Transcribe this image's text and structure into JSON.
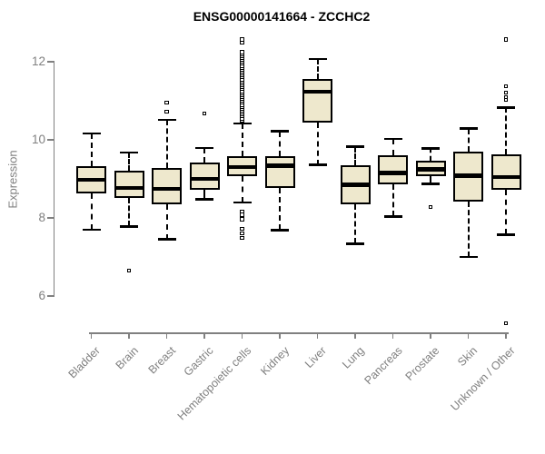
{
  "colors": {
    "box_fill": "#EEE8CD",
    "box_border": "#000000",
    "median": "#000000",
    "axis": "#808080",
    "tick_label": "#808080",
    "title": "#000000",
    "background": "#ffffff"
  },
  "chart_data": {
    "type": "boxplot",
    "title": "ENSG00000141664 - ZCCHC2",
    "xlabel": "",
    "ylabel": "Expression",
    "yticks": [
      6,
      8,
      10,
      12
    ],
    "ylim": [
      5.0,
      12.8
    ],
    "grid": false,
    "categories": [
      "Bladder",
      "Brain",
      "Breast",
      "Gastric",
      "Hematopoietic cells",
      "Kidney",
      "Liver",
      "Lung",
      "Pancreas",
      "Prostate",
      "Skin",
      "Unknown / Other"
    ],
    "series": [
      {
        "category": "Bladder",
        "whisker_low": 7.7,
        "q1": 8.63,
        "median": 8.98,
        "q3": 9.33,
        "whisker_high": 10.16,
        "outliers": []
      },
      {
        "category": "Brain",
        "whisker_low": 7.78,
        "q1": 8.51,
        "median": 8.77,
        "q3": 9.21,
        "whisker_high": 9.67,
        "outliers": [
          6.65
        ]
      },
      {
        "category": "Breast",
        "whisker_low": 7.45,
        "q1": 8.35,
        "median": 8.74,
        "q3": 9.28,
        "whisker_high": 10.51,
        "outliers": [
          10.72,
          10.95
        ]
      },
      {
        "category": "Gastric",
        "whisker_low": 8.48,
        "q1": 8.72,
        "median": 9.0,
        "q3": 9.42,
        "whisker_high": 9.79,
        "outliers": [
          10.67
        ]
      },
      {
        "category": "Hematopoietic cells",
        "whisker_low": 8.39,
        "q1": 9.07,
        "median": 9.3,
        "q3": 9.58,
        "whisker_high": 10.42,
        "outliers": [
          10.5,
          10.55,
          10.6,
          10.65,
          10.7,
          10.75,
          10.8,
          10.85,
          10.9,
          10.95,
          11.0,
          11.05,
          11.1,
          11.15,
          11.2,
          11.25,
          11.3,
          11.35,
          11.4,
          11.45,
          11.5,
          11.55,
          11.6,
          11.65,
          11.7,
          11.75,
          11.8,
          11.85,
          11.9,
          11.95,
          12.0,
          12.05,
          12.1,
          12.15,
          12.2,
          12.25,
          12.5,
          12.57,
          8.16,
          8.08,
          7.97,
          7.72,
          7.6,
          7.49
        ]
      },
      {
        "category": "Kidney",
        "whisker_low": 7.69,
        "q1": 8.77,
        "median": 9.34,
        "q3": 9.58,
        "whisker_high": 10.22,
        "outliers": []
      },
      {
        "category": "Liver",
        "whisker_low": 9.36,
        "q1": 10.44,
        "median": 11.23,
        "q3": 11.55,
        "whisker_high": 12.07,
        "outliers": []
      },
      {
        "category": "Lung",
        "whisker_low": 7.34,
        "q1": 8.35,
        "median": 8.85,
        "q3": 9.36,
        "whisker_high": 9.82,
        "outliers": []
      },
      {
        "category": "Pancreas",
        "whisker_low": 8.04,
        "q1": 8.85,
        "median": 9.15,
        "q3": 9.61,
        "whisker_high": 10.02,
        "outliers": []
      },
      {
        "category": "Prostate",
        "whisker_low": 8.87,
        "q1": 9.06,
        "median": 9.25,
        "q3": 9.47,
        "whisker_high": 9.78,
        "outliers": [
          8.28
        ]
      },
      {
        "category": "Skin",
        "whisker_low": 7.0,
        "q1": 8.43,
        "median": 9.08,
        "q3": 9.69,
        "whisker_high": 10.29,
        "outliers": []
      },
      {
        "category": "Unknown / Other",
        "whisker_low": 7.57,
        "q1": 8.71,
        "median": 9.05,
        "q3": 9.63,
        "whisker_high": 10.83,
        "outliers": [
          11.02,
          11.09,
          11.21,
          11.37,
          12.57,
          5.3
        ]
      }
    ]
  }
}
